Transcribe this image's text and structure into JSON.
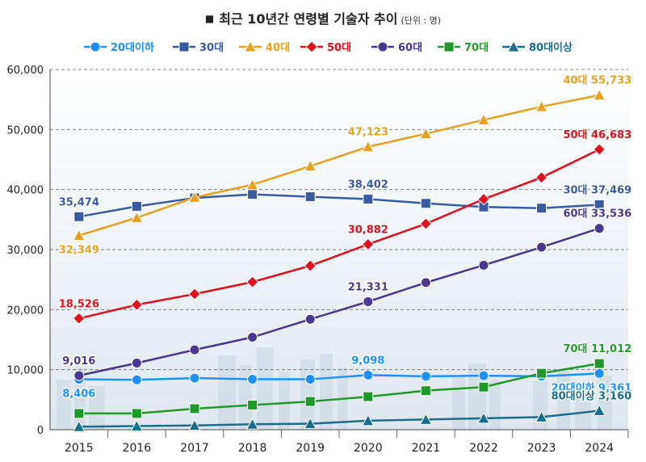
{
  "title": {
    "bullet": "■",
    "text": "최근 10년간 연령별 기술자 추이",
    "unit": "(단위 : 명)"
  },
  "colors": {
    "20대이하": "#1e90ff",
    "30대": "#3a5ba0",
    "40대": "#e8a020",
    "50대": "#e0101e",
    "60대": "#4a3890",
    "70대": "#1f9a2a",
    "80대이상": "#1a6e8c"
  },
  "chart_data": {
    "type": "line",
    "title": "최근 10년간 연령별 기술자 추이",
    "unit": "(단위 : 명)",
    "x": [
      "2015",
      "2016",
      "2017",
      "2018",
      "2019",
      "2020",
      "2021",
      "2022",
      "2023",
      "2024"
    ],
    "ylim": [
      0,
      60000
    ],
    "yticks": [
      "0",
      "10,000",
      "20,000",
      "30,000",
      "40,000",
      "50,000",
      "60,000"
    ],
    "grid": "horizontal-dashed",
    "legend_position": "top",
    "series": [
      {
        "name": "20대이하",
        "marker": "circle",
        "values": [
          8406,
          8300,
          8600,
          8400,
          8400,
          9098,
          8900,
          9000,
          8900,
          9361
        ]
      },
      {
        "name": "30대",
        "marker": "square",
        "values": [
          35474,
          37200,
          38600,
          39200,
          38800,
          38402,
          37700,
          37100,
          36900,
          37469
        ]
      },
      {
        "name": "40대",
        "marker": "triangle",
        "values": [
          32349,
          35300,
          38700,
          40800,
          43900,
          47123,
          49300,
          51600,
          53800,
          55733
        ]
      },
      {
        "name": "50대",
        "marker": "diamond",
        "values": [
          18526,
          20800,
          22600,
          24600,
          27300,
          30882,
          34300,
          38400,
          42000,
          46683
        ]
      },
      {
        "name": "60대",
        "marker": "circle",
        "values": [
          9016,
          11100,
          13300,
          15400,
          18400,
          21331,
          24500,
          27400,
          30400,
          33536
        ]
      },
      {
        "name": "70대",
        "marker": "square",
        "values": [
          2700,
          2700,
          3500,
          4100,
          4700,
          5500,
          6500,
          7100,
          9400,
          11012
        ]
      },
      {
        "name": "80대이상",
        "marker": "triangle",
        "values": [
          500,
          600,
          700,
          900,
          1000,
          1500,
          1700,
          1900,
          2100,
          3160
        ]
      }
    ],
    "annotations": [
      {
        "series": "30대",
        "index": 0,
        "text": "35,474",
        "pos": "above"
      },
      {
        "series": "40대",
        "index": 0,
        "text": "32,349",
        "pos": "below"
      },
      {
        "series": "50대",
        "index": 0,
        "text": "18,526",
        "pos": "above"
      },
      {
        "series": "60대",
        "index": 0,
        "text": "9,016",
        "pos": "above"
      },
      {
        "series": "20대이하",
        "index": 0,
        "text": "8,406",
        "pos": "below"
      },
      {
        "series": "40대",
        "index": 5,
        "text": "47,123",
        "pos": "above"
      },
      {
        "series": "30대",
        "index": 5,
        "text": "38,402",
        "pos": "above"
      },
      {
        "series": "50대",
        "index": 5,
        "text": "30,882",
        "pos": "above"
      },
      {
        "series": "60대",
        "index": 5,
        "text": "21,331",
        "pos": "above"
      },
      {
        "series": "20대이하",
        "index": 5,
        "text": "9,098",
        "pos": "above"
      },
      {
        "series": "40대",
        "index": 9,
        "text": "40대 55,733",
        "pos": "above"
      },
      {
        "series": "50대",
        "index": 9,
        "text": "50대 46,683",
        "pos": "above"
      },
      {
        "series": "30대",
        "index": 9,
        "text": "30대 37,469",
        "pos": "above"
      },
      {
        "series": "60대",
        "index": 9,
        "text": "60대 33,536",
        "pos": "above"
      },
      {
        "series": "70대",
        "index": 9,
        "text": "70대 11,012",
        "pos": "above"
      },
      {
        "series": "20대이하",
        "index": 9,
        "text": "20대이하 9,361",
        "pos": "below"
      },
      {
        "series": "80대이상",
        "index": 9,
        "text": "80대이상 3,160",
        "pos": "above"
      }
    ]
  }
}
